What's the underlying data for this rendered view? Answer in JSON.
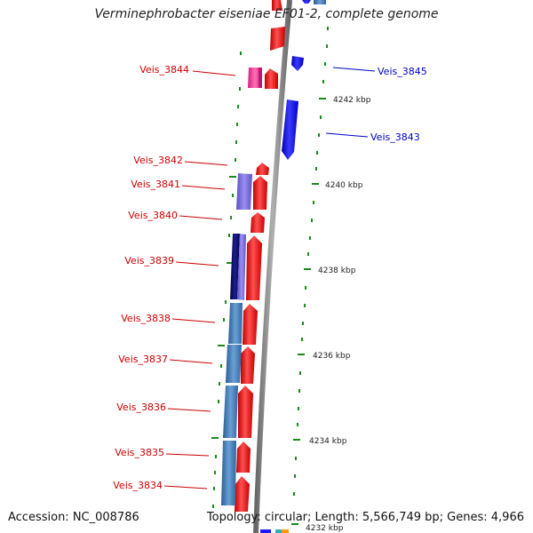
{
  "title": "Verminephrobacter eiseniae EF01-2, complete genome",
  "footer": {
    "accession": "Accession: NC_008786",
    "summary": "Topology: circular; Length: 5,566,749 bp; Genes: 4,966"
  },
  "colors": {
    "forward_gene": "#ff1a1a",
    "reverse_gene": "#1a1aff",
    "lavender_gene": "#7a6fe0",
    "navy_gene": "#0a0a66",
    "steel_blue_gene": "#4a86c0",
    "pink_gene": "#ff3a9a",
    "label_red": "#cc0000",
    "label_blue": "#0000cc",
    "ruler_tick": "#1a8a1a",
    "backbone": "#888888"
  },
  "ruler_labels": [
    "4242 kbp",
    "4240 kbp",
    "4238 kbp",
    "4236 kbp",
    "4234 kbp",
    "4232 kbp"
  ],
  "gene_labels": {
    "left": [
      "Veis_3844",
      "Veis_3842",
      "Veis_3841",
      "Veis_3840",
      "Veis_3839",
      "Veis_3838",
      "Veis_3837",
      "Veis_3836",
      "Veis_3835",
      "Veis_3834"
    ],
    "right": [
      "Veis_3845",
      "Veis_3843"
    ]
  }
}
